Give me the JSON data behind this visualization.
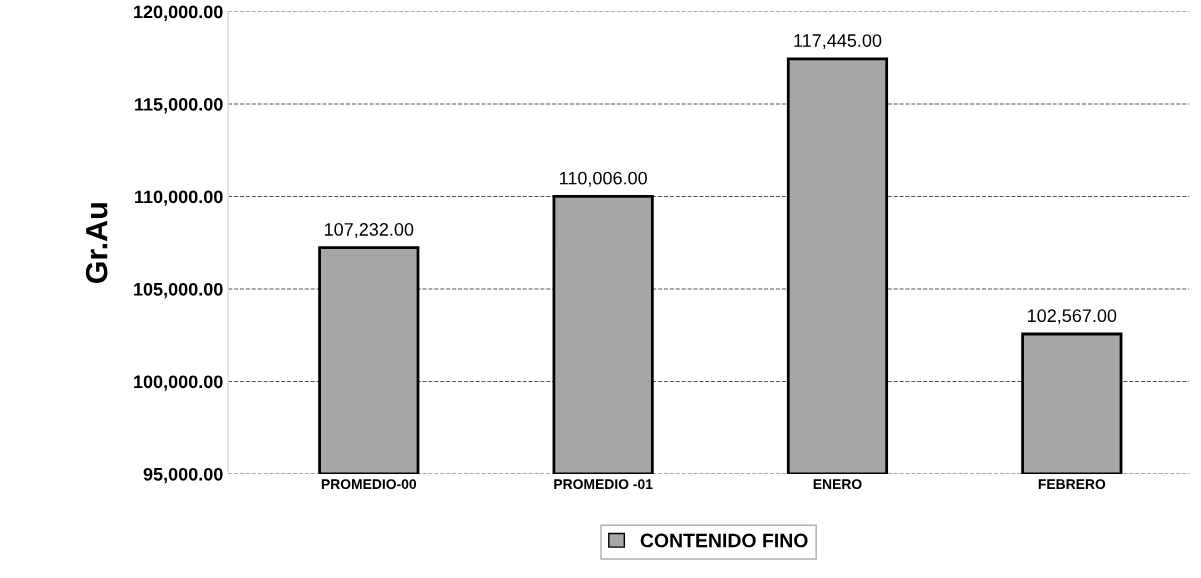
{
  "chart_data": {
    "type": "bar",
    "ylabel": "Gr.Au",
    "categories": [
      "PROMEDIO-00",
      "PROMEDIO -01",
      "ENERO",
      "FEBRERO"
    ],
    "series": [
      {
        "name": "CONTENIDO FINO",
        "color": "#a6a6a6",
        "values": [
          107232,
          110006,
          117445,
          102567
        ]
      }
    ],
    "value_labels": [
      "107,232.00",
      "110,006.00",
      "117,445.00",
      "102,567.00"
    ],
    "ylim": [
      95000,
      120000
    ],
    "yticks": [
      {
        "value": 95000,
        "label": "95,000.00"
      },
      {
        "value": 100000,
        "label": "100,000.00"
      },
      {
        "value": 105000,
        "label": "105,000.00"
      },
      {
        "value": 110000,
        "label": "110,000.00"
      },
      {
        "value": 115000,
        "label": "115,000.00"
      },
      {
        "value": 120000,
        "label": "120,000.00"
      }
    ],
    "grid": "y",
    "legend": "bottom"
  }
}
